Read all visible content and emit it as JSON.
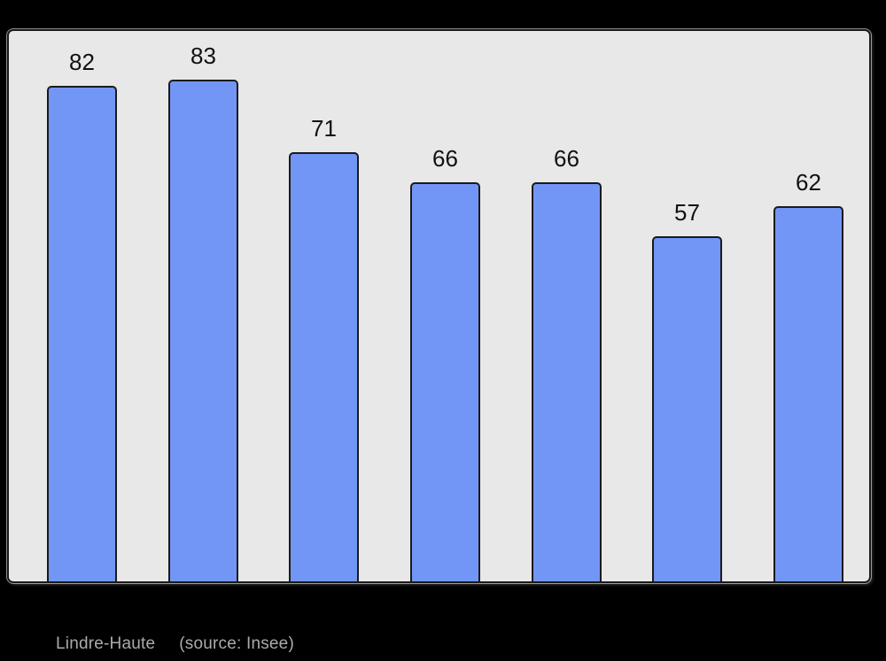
{
  "page": {
    "background": "#000000"
  },
  "chart_data": {
    "type": "bar",
    "values": [
      82,
      83,
      71,
      66,
      66,
      57,
      62
    ],
    "data_labels": [
      "82",
      "83",
      "71",
      "66",
      "66",
      "57",
      "62"
    ],
    "title": "",
    "xlabel": "",
    "ylabel": "",
    "ylim": [
      0,
      91
    ],
    "grid": false,
    "legend": false,
    "plot_background": "#e8e8e8",
    "plot_border_color": "#1a1a1a",
    "bar_fill": "#7296f6",
    "bar_border": "#1a1a1a",
    "data_label_color": "#111111"
  },
  "caption": {
    "place": "Lindre-Haute",
    "source": "(source: Insee)",
    "color": "#ababab"
  }
}
